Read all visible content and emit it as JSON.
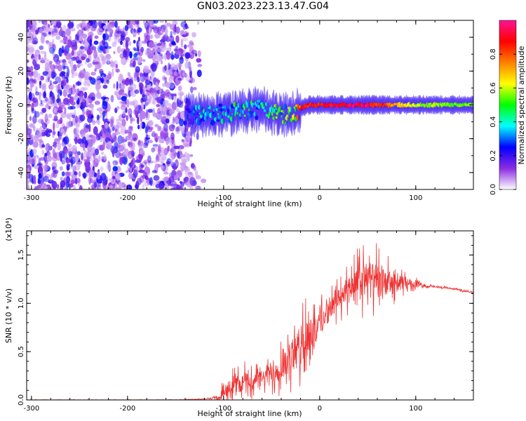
{
  "title": "GN03.2023.223.13.47.G04",
  "chart_data": [
    {
      "type": "heatmap",
      "xlabel": "Height of straight line (km)",
      "ylabel": "Frequency (Hz)",
      "xlim": [
        -305,
        160
      ],
      "ylim": [
        -50,
        50
      ],
      "xticks": [
        -300,
        -200,
        -100,
        0,
        100
      ],
      "yticks": [
        -40,
        -20,
        0,
        20,
        40
      ],
      "colorbar": {
        "label": "Normalized spectral amplitude",
        "range": [
          0,
          1
        ],
        "ticks": [
          "0.0",
          "0.2",
          "0.4",
          "0.6",
          "0.8"
        ],
        "tick_values": [
          0,
          0.2,
          0.4,
          0.6,
          0.8
        ],
        "colors": [
          "#ffffff",
          "#8a2be2",
          "#0000ff",
          "#00ffff",
          "#00ff00",
          "#ffff00",
          "#ff8000",
          "#ff0000",
          "#ff1493"
        ]
      },
      "noise_region_x": [
        -305,
        -120
      ],
      "ridge": {
        "x": [
          -140,
          -120,
          -100,
          -80,
          -60,
          -40,
          -30,
          -20,
          -10,
          0,
          20,
          50,
          100,
          160
        ],
        "freq": [
          -6,
          -6,
          -5,
          -4,
          -2,
          -6,
          -6,
          -2,
          0,
          0,
          0,
          0,
          0,
          0
        ],
        "peak_amplitude": [
          0.3,
          0.4,
          0.45,
          0.5,
          0.5,
          0.55,
          0.6,
          0.85,
          0.9,
          0.9,
          0.95,
          0.95,
          0.6,
          0.55
        ]
      }
    },
    {
      "type": "line",
      "xlabel": "Height of straight line (km)",
      "ylabel": "SNR (10 * v/v)",
      "exponent_label": "(x10⁴)",
      "xlim": [
        -305,
        160
      ],
      "ylim": [
        0,
        1.75
      ],
      "xticks": [
        -300,
        -200,
        -100,
        0,
        100
      ],
      "yticks": [
        "0.0",
        "0.5",
        "1.0",
        "1.5"
      ],
      "ytick_values": [
        0,
        0.5,
        1.0,
        1.5
      ],
      "color": "#ee3333",
      "series": [
        {
          "x": [
            -305,
            -250,
            -200,
            -150,
            -120,
            -105,
            -100,
            -90,
            -80,
            -70,
            -60,
            -50,
            -40,
            -30,
            -20,
            -10,
            0,
            10,
            20,
            30,
            40,
            50,
            60,
            70,
            80,
            90,
            100,
            110,
            120,
            130,
            140,
            150,
            160
          ],
          "values": [
            0.0,
            0.0,
            0.0,
            0.0,
            0.01,
            0.02,
            0.1,
            0.15,
            0.18,
            0.2,
            0.22,
            0.28,
            0.35,
            0.45,
            0.55,
            0.7,
            0.8,
            0.92,
            1.05,
            1.15,
            1.2,
            1.25,
            1.22,
            1.22,
            1.2,
            1.22,
            1.2,
            1.18,
            1.17,
            1.16,
            1.15,
            1.13,
            1.11
          ],
          "spread": [
            0.0,
            0.0,
            0.0,
            0.0,
            0.0,
            0.02,
            0.1,
            0.12,
            0.15,
            0.12,
            0.12,
            0.15,
            0.2,
            0.25,
            0.3,
            0.25,
            0.2,
            0.15,
            0.15,
            0.2,
            0.25,
            0.28,
            0.25,
            0.18,
            0.12,
            0.08,
            0.05,
            0.02,
            0.01,
            0.01,
            0.01,
            0.01,
            0.01
          ]
        }
      ]
    }
  ]
}
